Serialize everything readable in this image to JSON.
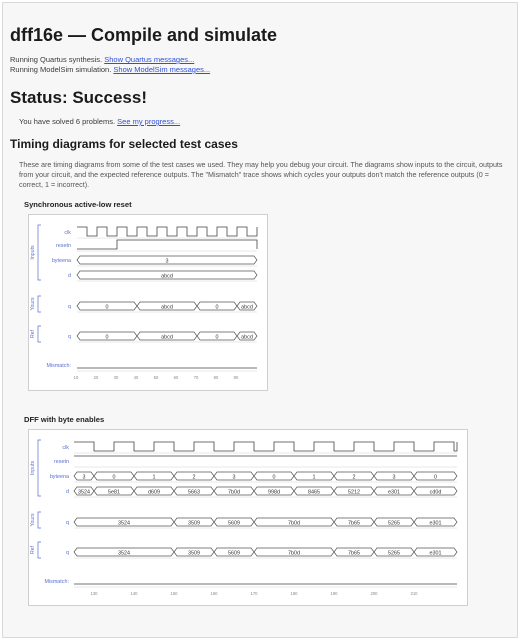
{
  "page_title": "dff16e — Compile and simulate",
  "synthesis": {
    "text": "Running Quartus synthesis.",
    "link": "Show Quartus messages..."
  },
  "simulation": {
    "text": "Running ModelSim simulation.",
    "link": "Show ModelSim messages..."
  },
  "status": "Status: Success!",
  "solved": {
    "text": "You have solved 6 problems.",
    "link": "See my progress..."
  },
  "timing_heading": "Timing diagrams for selected test cases",
  "timing_description": "These are timing diagrams from some of the test cases we used. They may help you debug your circuit. The diagrams show inputs to the circuit, outputs from your circuit, and the expected reference outputs. The \"Mismatch\" trace shows which cycles your outputs don't match the reference outputs (0 = correct, 1 = incorrect).",
  "group_labels": {
    "inputs": "Inputs",
    "yours": "Yours",
    "ref": "Ref"
  },
  "mismatch_label": "Mismatch:",
  "diagram1": {
    "title": "Synchronous active-low reset",
    "signals": {
      "clk": "clk",
      "resetn": "resetn",
      "byteena": "byteena",
      "d": "d",
      "q_yours": "q",
      "q_ref": "q"
    },
    "byteena_value": "3",
    "d_value": "abcd",
    "q_yours_values": [
      "0",
      "abcd",
      "0",
      "abcd"
    ],
    "q_ref_values": [
      "0",
      "abcd",
      "0",
      "abcd"
    ],
    "axis_ticks": [
      "10",
      "20",
      "30",
      "40",
      "50",
      "60",
      "70",
      "80",
      "90"
    ]
  },
  "diagram2": {
    "title": "DFF with byte enables",
    "signals": {
      "clk": "clk",
      "resetn": "resetn",
      "byteena": "byteena",
      "d": "d",
      "q_yours": "q",
      "q_ref": "q"
    },
    "byteena_values": [
      "3",
      "0",
      "1",
      "2",
      "3",
      "0",
      "1",
      "2",
      "3",
      "0"
    ],
    "d_values": [
      "3524",
      "5e81",
      "d609",
      "5663",
      "7b0d",
      "998d",
      "8465",
      "5212",
      "e301",
      "cd0d"
    ],
    "q_yours_values": [
      "3524",
      "3509",
      "5609",
      "7b0d",
      "7b65",
      "5265",
      "e301"
    ],
    "q_ref_values": [
      "3524",
      "3509",
      "5609",
      "7b0d",
      "7b65",
      "5265",
      "e301"
    ],
    "axis_ticks": [
      "130",
      "140",
      "150",
      "160",
      "170",
      "180",
      "190",
      "200",
      "210"
    ]
  }
}
